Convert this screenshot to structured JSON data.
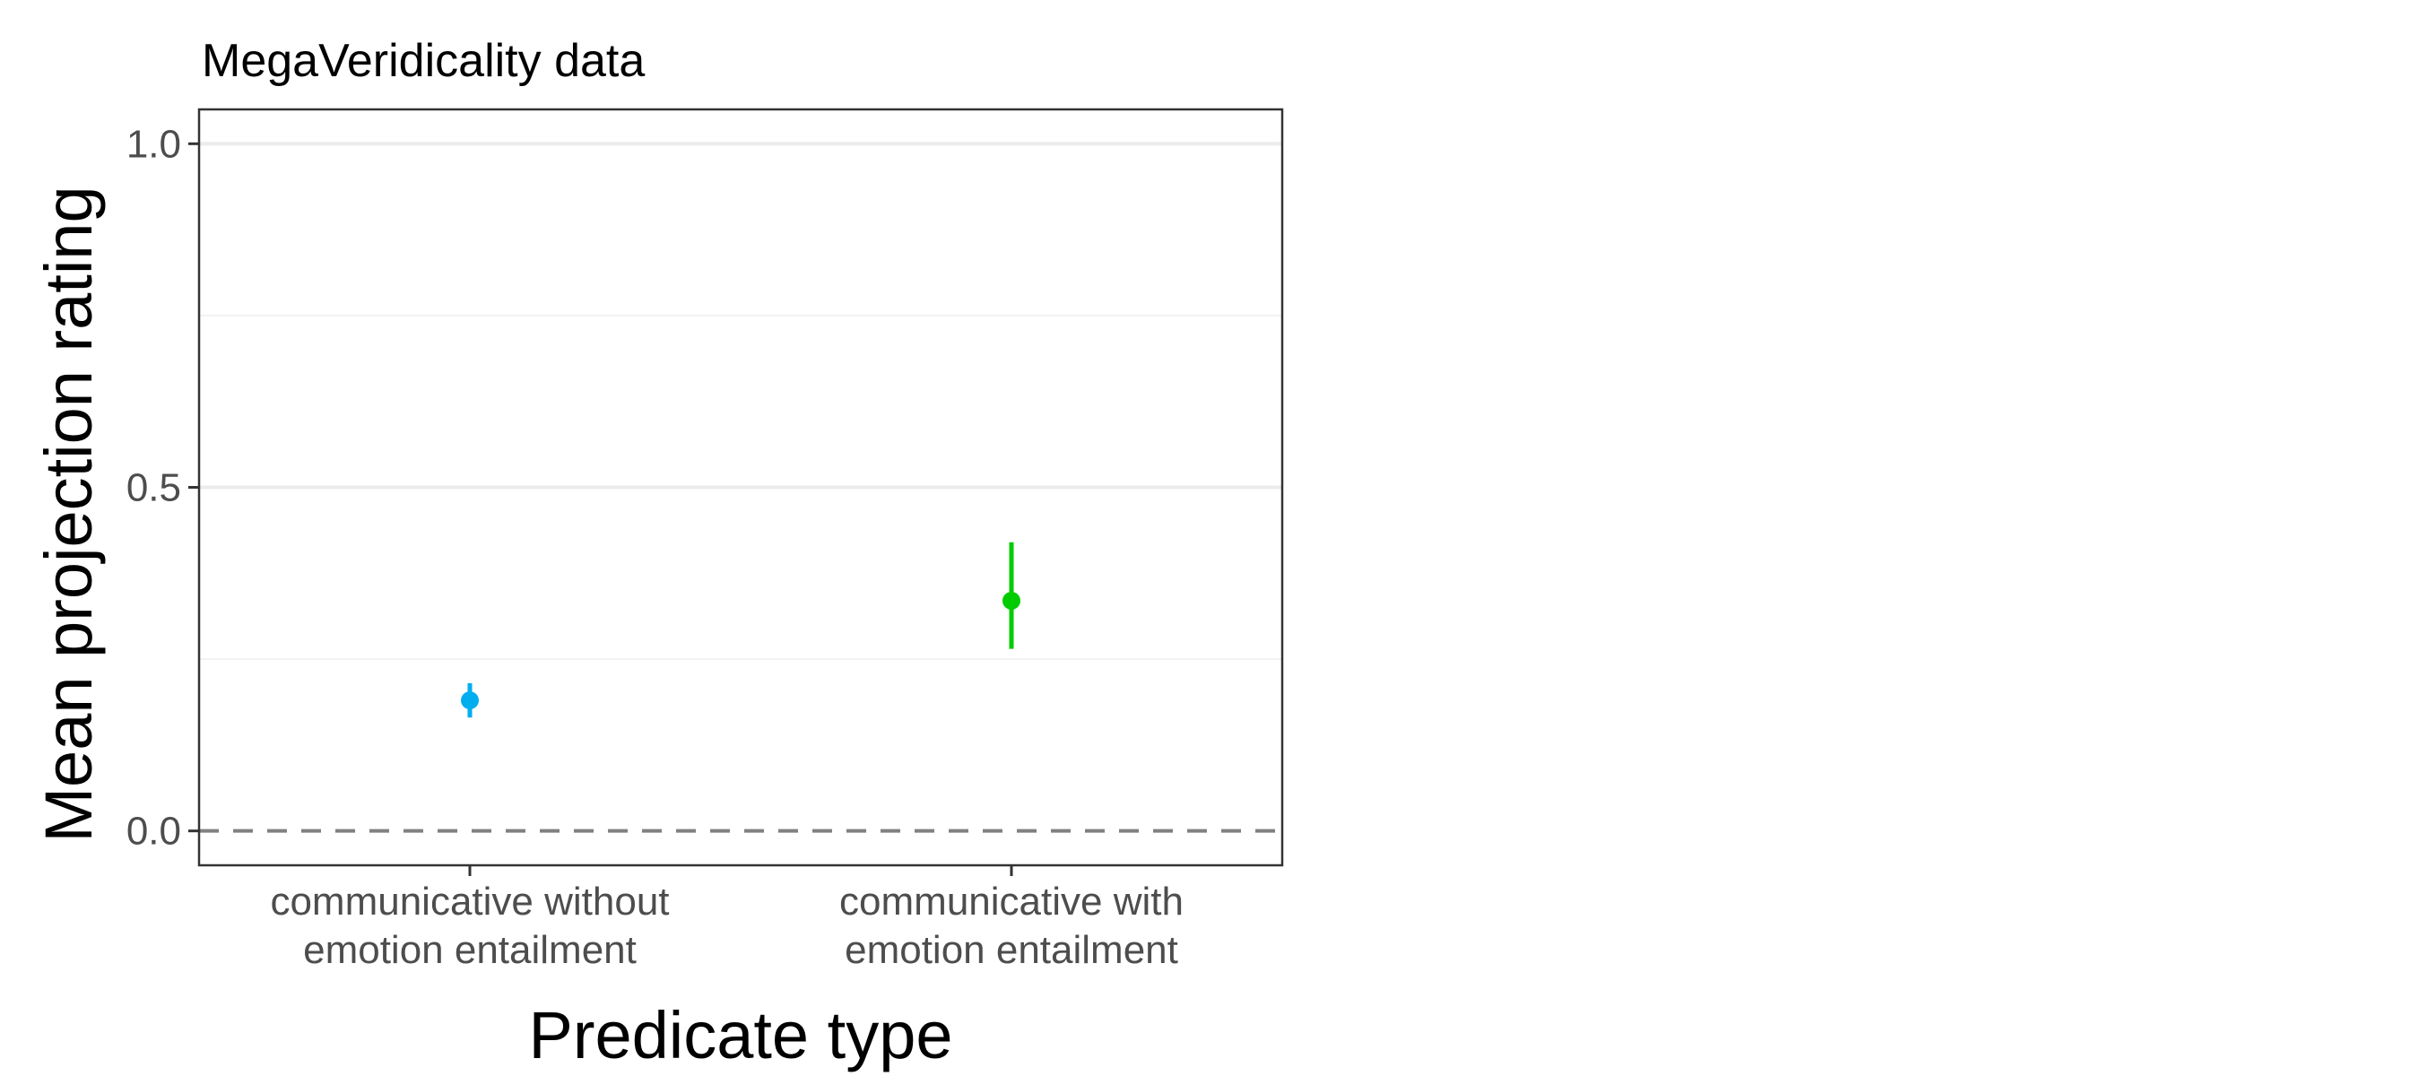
{
  "chart_data": {
    "type": "scatter",
    "title": "MegaVeridicality data",
    "xlabel": "Predicate type",
    "ylabel": "Mean projection rating",
    "ylim": [
      -0.05,
      1.05
    ],
    "yticks": [
      0.0,
      0.5,
      1.0
    ],
    "ytick_labels": [
      "0.0",
      "0.5",
      "1.0"
    ],
    "grid": true,
    "reference_line": {
      "y": 0.0,
      "style": "dashed"
    },
    "categories": [
      [
        "communicative without",
        "emotion entailment"
      ],
      [
        "communicative with",
        "emotion entailment"
      ]
    ],
    "points": [
      {
        "category_index": 0,
        "mean": 0.19,
        "ci_low": 0.165,
        "ci_high": 0.215,
        "color": "#00aef0"
      },
      {
        "category_index": 1,
        "mean": 0.335,
        "ci_low": 0.265,
        "ci_high": 0.42,
        "color": "#00cc00"
      }
    ]
  }
}
